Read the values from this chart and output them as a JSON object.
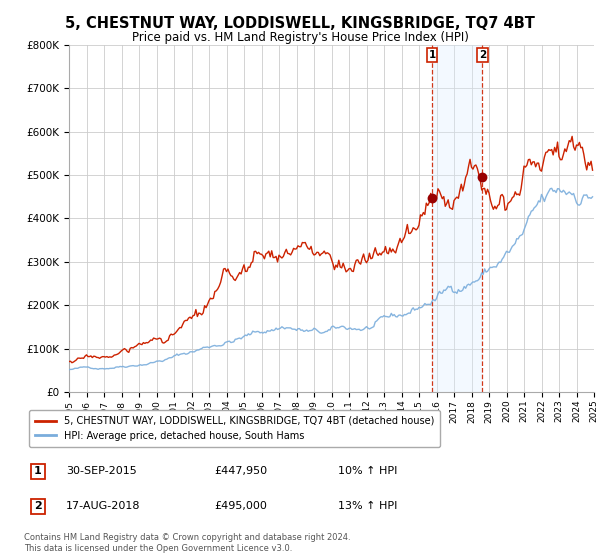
{
  "title": "5, CHESTNUT WAY, LODDISWELL, KINGSBRIDGE, TQ7 4BT",
  "subtitle": "Price paid vs. HM Land Registry's House Price Index (HPI)",
  "legend_line1": "5, CHESTNUT WAY, LODDISWELL, KINGSBRIDGE, TQ7 4BT (detached house)",
  "legend_line2": "HPI: Average price, detached house, South Hams",
  "transaction1_date": "30-SEP-2015",
  "transaction1_price": "£447,950",
  "transaction1_hpi": "10% ↑ HPI",
  "transaction2_date": "17-AUG-2018",
  "transaction2_price": "£495,000",
  "transaction2_hpi": "13% ↑ HPI",
  "transaction1_year": 2015.75,
  "transaction2_year": 2018.62,
  "transaction1_value": 447950,
  "transaction2_value": 495000,
  "ylim": [
    0,
    800000
  ],
  "yticks": [
    0,
    100000,
    200000,
    300000,
    400000,
    500000,
    600000,
    700000,
    800000
  ],
  "ytick_labels": [
    "£0",
    "£100K",
    "£200K",
    "£300K",
    "£400K",
    "£500K",
    "£600K",
    "£700K",
    "£800K"
  ],
  "xlim_start": 1995,
  "xlim_end": 2025,
  "hpi_color": "#7aaddc",
  "price_color": "#cc2200",
  "shading_color": "#ddeeff",
  "marker_color": "#990000",
  "background_color": "#ffffff",
  "grid_color": "#cccccc",
  "footer_text": "Contains HM Land Registry data © Crown copyright and database right 2024.\nThis data is licensed under the Open Government Licence v3.0."
}
